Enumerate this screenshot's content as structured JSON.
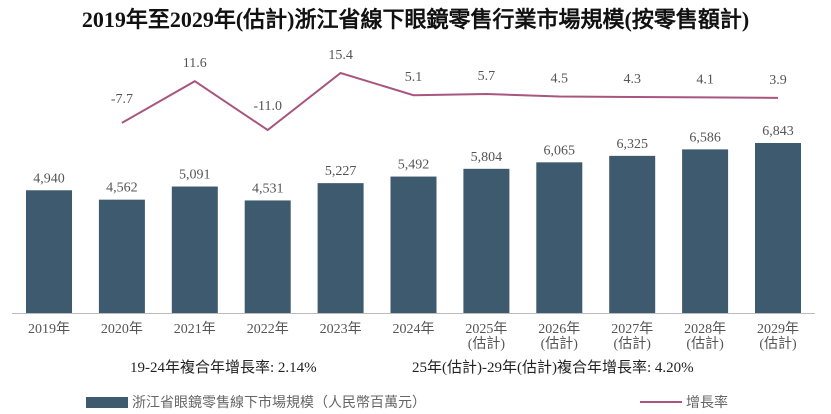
{
  "chart_data": {
    "type": "bar+line",
    "title": "2019年至2029年(估計)浙江省線下眼鏡零售行業市場規模(按零售額計)",
    "categories": [
      "2019年",
      "2020年",
      "2021年",
      "2022年",
      "2023年",
      "2024年",
      "2025年\n(估計)",
      "2026年\n(估計)",
      "2027年\n(估計)",
      "2028年\n(估計)",
      "2029年\n(估計)"
    ],
    "series": [
      {
        "name": "浙江省眼鏡零售線下市場規模（人民幣百萬元）",
        "type": "bar",
        "color": "#3d5a6e",
        "values": [
          4940,
          4562,
          5091,
          4531,
          5227,
          5492,
          5804,
          6065,
          6325,
          6586,
          6843
        ]
      },
      {
        "name": "增長率",
        "type": "line",
        "color": "#a8557f",
        "values": [
          null,
          -7.7,
          11.6,
          -11.0,
          15.4,
          5.1,
          5.7,
          4.5,
          4.3,
          4.1,
          3.9
        ]
      }
    ],
    "annotations": [
      "19-24年複合年增長率: 2.14%",
      "25年(估計)-29年(估計)複合年增長率: 4.20%"
    ],
    "legend_position": "bottom",
    "grid": false
  }
}
